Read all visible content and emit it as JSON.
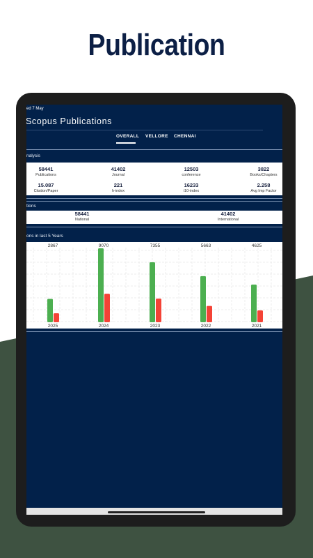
{
  "title": "Publication",
  "status": "ed 7 May",
  "app_title": "Scopus Publications",
  "tabs": [
    "OVERALL",
    "VELLORE",
    "CHENNAI"
  ],
  "analysis": {
    "heading": "nalysis",
    "stats": [
      {
        "value": 58441,
        "label": "Publications"
      },
      {
        "value": 41402,
        "label": "Journal"
      },
      {
        "value": 12503,
        "label": "conference"
      },
      {
        "value": 3822,
        "label": "Books/Chapters"
      },
      {
        "value": 15.087,
        "label": "Citation/Paper"
      },
      {
        "value": 221,
        "label": "h-index"
      },
      {
        "value": 16233,
        "label": "i10-index"
      },
      {
        "value": 2.258,
        "label": "Avg Imp Factor"
      }
    ]
  },
  "citations": {
    "heading": "tions",
    "items": [
      {
        "value": 58441,
        "label": "National"
      },
      {
        "value": 41402,
        "label": "International"
      }
    ]
  },
  "chart": {
    "type": "bar",
    "title": "ons in last 5 Years",
    "categories": [
      "2025",
      "2024",
      "2023",
      "2022",
      "2021"
    ],
    "series": [
      {
        "color": "#4caf50",
        "values": [
          2867,
          9070,
          7355,
          5663,
          4625
        ]
      },
      {
        "color": "#f44336",
        "values": [
          1100,
          3500,
          2900,
          2000,
          1450
        ]
      }
    ]
  }
}
